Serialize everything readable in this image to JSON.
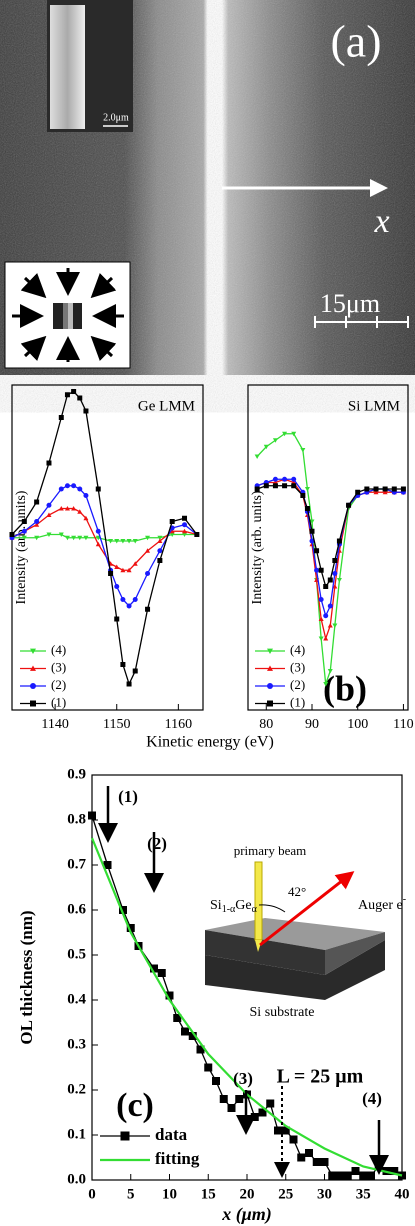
{
  "image_panel": {
    "label": "(a)",
    "axis_label": "x",
    "scale_bar": "15μm",
    "inset_scale_bar": "2.0μm"
  },
  "panel_b": {
    "label": "(b)",
    "xlabel": "Kinetic energy (eV)"
  },
  "chart_data": [
    {
      "type": "line",
      "title": "Ge LMM",
      "ylabel": "Intensity (arb. units)",
      "xlim": [
        1133,
        1164
      ],
      "xticks": [
        1140,
        1150,
        1160
      ],
      "ylim": [
        0,
        100
      ],
      "legend": "lower left",
      "x": [
        1133,
        1135,
        1137,
        1139,
        1141,
        1142,
        1143,
        1144,
        1145,
        1147,
        1149,
        1150,
        1151,
        1152,
        1153,
        1155,
        1157,
        1159,
        1161,
        1163
      ],
      "series": [
        {
          "name": "(4)",
          "color": "#33dd33",
          "marker": "triangle-down",
          "values": [
            53,
            53,
            53,
            54,
            54,
            53,
            53,
            53,
            53,
            53,
            52,
            52,
            52,
            52,
            52,
            53,
            53,
            54,
            54,
            54
          ]
        },
        {
          "name": "(3)",
          "color": "#ee1111",
          "marker": "triangle-up",
          "values": [
            53,
            55,
            57,
            60,
            62,
            62,
            62,
            61,
            59,
            51,
            45,
            44,
            43,
            43,
            45,
            49,
            52,
            55,
            55,
            54
          ]
        },
        {
          "name": "(2)",
          "color": "#1a1aff",
          "marker": "circle",
          "values": [
            53,
            55,
            58,
            63,
            68,
            69,
            69,
            68,
            66,
            55,
            43,
            38,
            34,
            32,
            34,
            42,
            49,
            56,
            57,
            54
          ]
        },
        {
          "name": "(1)",
          "color": "#000000",
          "marker": "square",
          "values": [
            54,
            58,
            64,
            76,
            90,
            97,
            98,
            96,
            92,
            68,
            42,
            28,
            14,
            8,
            12,
            31,
            46,
            58,
            59,
            54
          ]
        }
      ]
    },
    {
      "type": "line",
      "title": "Si LMM",
      "ylabel": "Intensity (arb. units)",
      "xlim": [
        76,
        111
      ],
      "xticks": [
        80,
        90,
        100,
        110
      ],
      "ylim": [
        0,
        100
      ],
      "legend": "lower left",
      "x": [
        78,
        80,
        82,
        84,
        86,
        88,
        89,
        90,
        91,
        92,
        93,
        94,
        95,
        96,
        98,
        100,
        102,
        104,
        106,
        108,
        110
      ],
      "series": [
        {
          "name": "(4)",
          "color": "#33dd33",
          "marker": "triangle-down",
          "values": [
            78,
            81,
            83,
            85,
            85,
            80,
            68,
            58,
            40,
            22,
            8,
            12,
            26,
            40,
            62,
            66,
            67,
            68,
            68,
            67,
            67
          ]
        },
        {
          "name": "(3)",
          "color": "#ee1111",
          "marker": "triangle-up",
          "values": [
            69,
            70,
            70,
            71,
            70,
            66,
            60,
            51,
            40,
            28,
            22,
            26,
            38,
            49,
            63,
            66,
            67,
            67,
            67,
            67,
            67
          ]
        },
        {
          "name": "(2)",
          "color": "#1a1aff",
          "marker": "circle",
          "values": [
            69,
            70,
            71,
            71,
            71,
            67,
            61,
            52,
            43,
            34,
            29,
            32,
            42,
            51,
            63,
            66,
            67,
            68,
            68,
            67,
            67
          ]
        },
        {
          "name": "(1)",
          "color": "#000000",
          "marker": "square",
          "values": [
            68,
            69,
            69,
            69,
            69,
            66,
            62,
            55,
            49,
            43,
            38,
            40,
            46,
            52,
            63,
            67,
            68,
            68,
            68,
            68,
            68
          ]
        }
      ]
    },
    {
      "type": "line",
      "panel_label": "(c)",
      "ylabel": "OL thickness (nm)",
      "xlabel": "x (μm)",
      "xlim": [
        0,
        40
      ],
      "xticks": [
        0,
        5,
        10,
        15,
        20,
        25,
        30,
        35,
        40
      ],
      "ylim": [
        0,
        0.9
      ],
      "yticks": [
        {
          "value": 0,
          "label": "0.0"
        },
        0.1,
        0.2,
        0.3,
        0.4,
        0.5,
        0.6,
        0.7,
        0.8,
        0.9
      ],
      "legend": "lower left",
      "series": [
        {
          "name": "data",
          "color": "#000000",
          "marker": "square",
          "x": [
            0,
            2,
            4,
            5,
            6,
            8,
            9,
            10,
            11,
            12,
            13,
            14,
            15,
            16,
            17,
            18,
            19,
            20,
            21,
            22,
            23,
            24,
            25,
            26,
            27,
            28,
            29,
            30,
            31,
            32,
            33,
            34,
            35,
            36,
            37,
            38,
            39,
            40
          ],
          "values": [
            0.81,
            0.7,
            0.6,
            0.56,
            0.52,
            0.47,
            0.46,
            0.41,
            0.36,
            0.33,
            0.32,
            0.29,
            0.25,
            0.22,
            0.18,
            0.16,
            0.18,
            0.19,
            0.14,
            0.15,
            0.17,
            0.11,
            0.11,
            0.09,
            0.05,
            0.06,
            0.04,
            0.04,
            0.01,
            0.01,
            0.01,
            0.02,
            0.01,
            0.01,
            0.03,
            0.02,
            0.02,
            0.01
          ]
        },
        {
          "name": "fitting",
          "color": "#33dd33",
          "x": [
            0,
            5,
            10,
            15,
            20,
            25,
            30,
            35,
            40
          ],
          "values": [
            0.76,
            0.55,
            0.4,
            0.28,
            0.19,
            0.12,
            0.07,
            0.03,
            0.01
          ]
        }
      ],
      "annotations": {
        "points": [
          "(1)",
          "(2)",
          "(3)",
          "(4)"
        ],
        "length": "L = 25 μm",
        "inset": {
          "beam": "primary beam",
          "angle": "42°",
          "auger": "Auger e",
          "auger_sup": "-",
          "layer": [
            "Si",
            "1-α",
            "Ge",
            "α"
          ],
          "substrate": "Si substrate"
        }
      }
    }
  ]
}
